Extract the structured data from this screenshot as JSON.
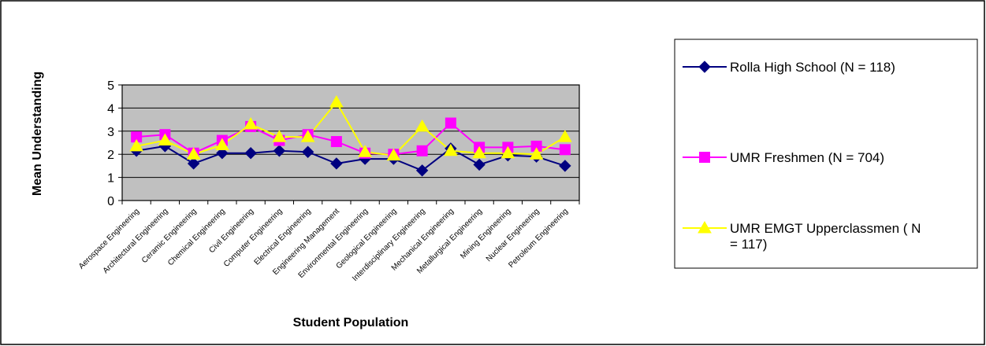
{
  "chart_data": {
    "type": "line",
    "xlabel": "Student Population",
    "ylabel": "Mean Understanding",
    "ylim": [
      0,
      5
    ],
    "yticks": [
      "0",
      "1",
      "2",
      "3",
      "4",
      "5"
    ],
    "grid": true,
    "legend_position": "right",
    "plot_background": "#c0c0c0",
    "categories": [
      "Aerospace Engineering",
      "Architectural Engineering",
      "Ceramic Engineering",
      "Chemical Engineering",
      "Civil Engineering",
      "Computer Engineering",
      "Electrical Engineering",
      "Engineering Management",
      "Environmental Engineering",
      "Geological Engineering",
      "Interdisciplinary Engineering",
      "Mechanical Engineering",
      "Metallurgical Engineering",
      "Mining Engineering",
      "Nuclear Engineering",
      "Petroleum Engineering"
    ],
    "series": [
      {
        "name": "Rolla High School (N = 118)",
        "legend_lines": [
          "Rolla High School (N = 118)"
        ],
        "color": "#000080",
        "marker": "diamond",
        "values": [
          2.15,
          2.35,
          1.6,
          2.05,
          2.05,
          2.15,
          2.1,
          1.6,
          1.8,
          1.8,
          1.3,
          2.25,
          1.55,
          1.95,
          1.9,
          1.5
        ]
      },
      {
        "name": "UMR Freshmen (N = 704)",
        "legend_lines": [
          "UMR Freshmen (N = 704)"
        ],
        "color": "#ff00ff",
        "marker": "square",
        "values": [
          2.75,
          2.85,
          2.05,
          2.6,
          3.2,
          2.6,
          2.85,
          2.55,
          2.05,
          2.0,
          2.15,
          3.35,
          2.3,
          2.3,
          2.35,
          2.2
        ]
      },
      {
        "name": "UMR EMGT Upperclassmen ( N = 117)",
        "legend_lines": [
          "UMR EMGT Upperclassmen ( N",
          "= 117)"
        ],
        "color": "#ffff00",
        "marker": "triangle",
        "values": [
          2.35,
          2.6,
          2.0,
          2.4,
          3.3,
          2.75,
          2.75,
          4.25,
          2.1,
          1.95,
          3.2,
          2.15,
          2.05,
          2.05,
          2.0,
          2.75
        ]
      }
    ]
  }
}
